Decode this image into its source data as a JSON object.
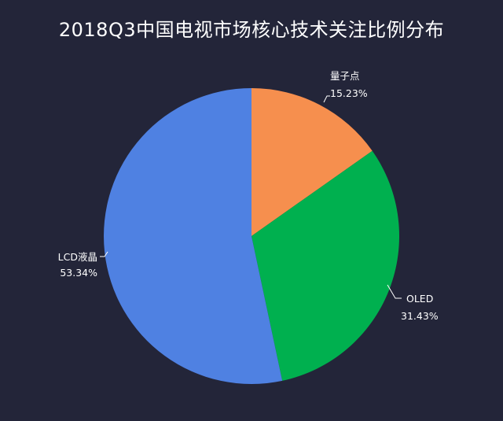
{
  "chart_data": {
    "type": "pie",
    "title": "2018Q3中国电视市场核心技术关注比例分布",
    "slices": [
      {
        "label": "量子点",
        "value": 15.23,
        "value_label": "15.23%",
        "color": "#f68f4e"
      },
      {
        "label": "OLED",
        "value": 31.43,
        "value_label": "31.43%",
        "color": "#00b04f"
      },
      {
        "label": "LCD液晶",
        "value": 53.34,
        "value_label": "53.34%",
        "color": "#4f81e2"
      }
    ]
  },
  "colors": {
    "background": "#232539",
    "text": "#ffffff",
    "leader_line": "#ffffff"
  }
}
